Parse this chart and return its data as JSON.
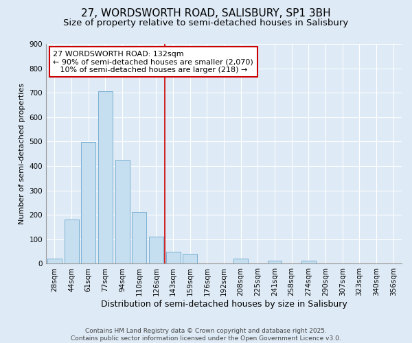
{
  "title": "27, WORDSWORTH ROAD, SALISBURY, SP1 3BH",
  "subtitle": "Size of property relative to semi-detached houses in Salisbury",
  "xlabel": "Distribution of semi-detached houses by size in Salisbury",
  "ylabel": "Number of semi-detached properties",
  "bar_labels": [
    "28sqm",
    "44sqm",
    "61sqm",
    "77sqm",
    "94sqm",
    "110sqm",
    "126sqm",
    "143sqm",
    "159sqm",
    "176sqm",
    "192sqm",
    "208sqm",
    "225sqm",
    "241sqm",
    "258sqm",
    "274sqm",
    "290sqm",
    "307sqm",
    "323sqm",
    "340sqm",
    "356sqm"
  ],
  "bar_values": [
    22,
    181,
    497,
    706,
    425,
    213,
    110,
    50,
    40,
    0,
    0,
    20,
    0,
    12,
    0,
    12,
    0,
    0,
    0,
    0,
    0
  ],
  "bar_color": "#c5dff0",
  "bar_edge_color": "#7ab0d0",
  "background_color": "#deeaf5",
  "grid_color": "#ffffff",
  "vline_color": "#cc0000",
  "annotation_text": "27 WORDSWORTH ROAD: 132sqm\n← 90% of semi-detached houses are smaller (2,070)\n   10% of semi-detached houses are larger (218) →",
  "annotation_box_color": "white",
  "annotation_box_edge": "#cc0000",
  "ylim": [
    0,
    900
  ],
  "yticks": [
    0,
    100,
    200,
    300,
    400,
    500,
    600,
    700,
    800,
    900
  ],
  "footer_line1": "Contains HM Land Registry data © Crown copyright and database right 2025.",
  "footer_line2": "Contains public sector information licensed under the Open Government Licence v3.0.",
  "title_fontsize": 11,
  "subtitle_fontsize": 9.5,
  "xlabel_fontsize": 9,
  "ylabel_fontsize": 8,
  "tick_fontsize": 7.5,
  "annotation_fontsize": 8,
  "footer_fontsize": 6.5
}
